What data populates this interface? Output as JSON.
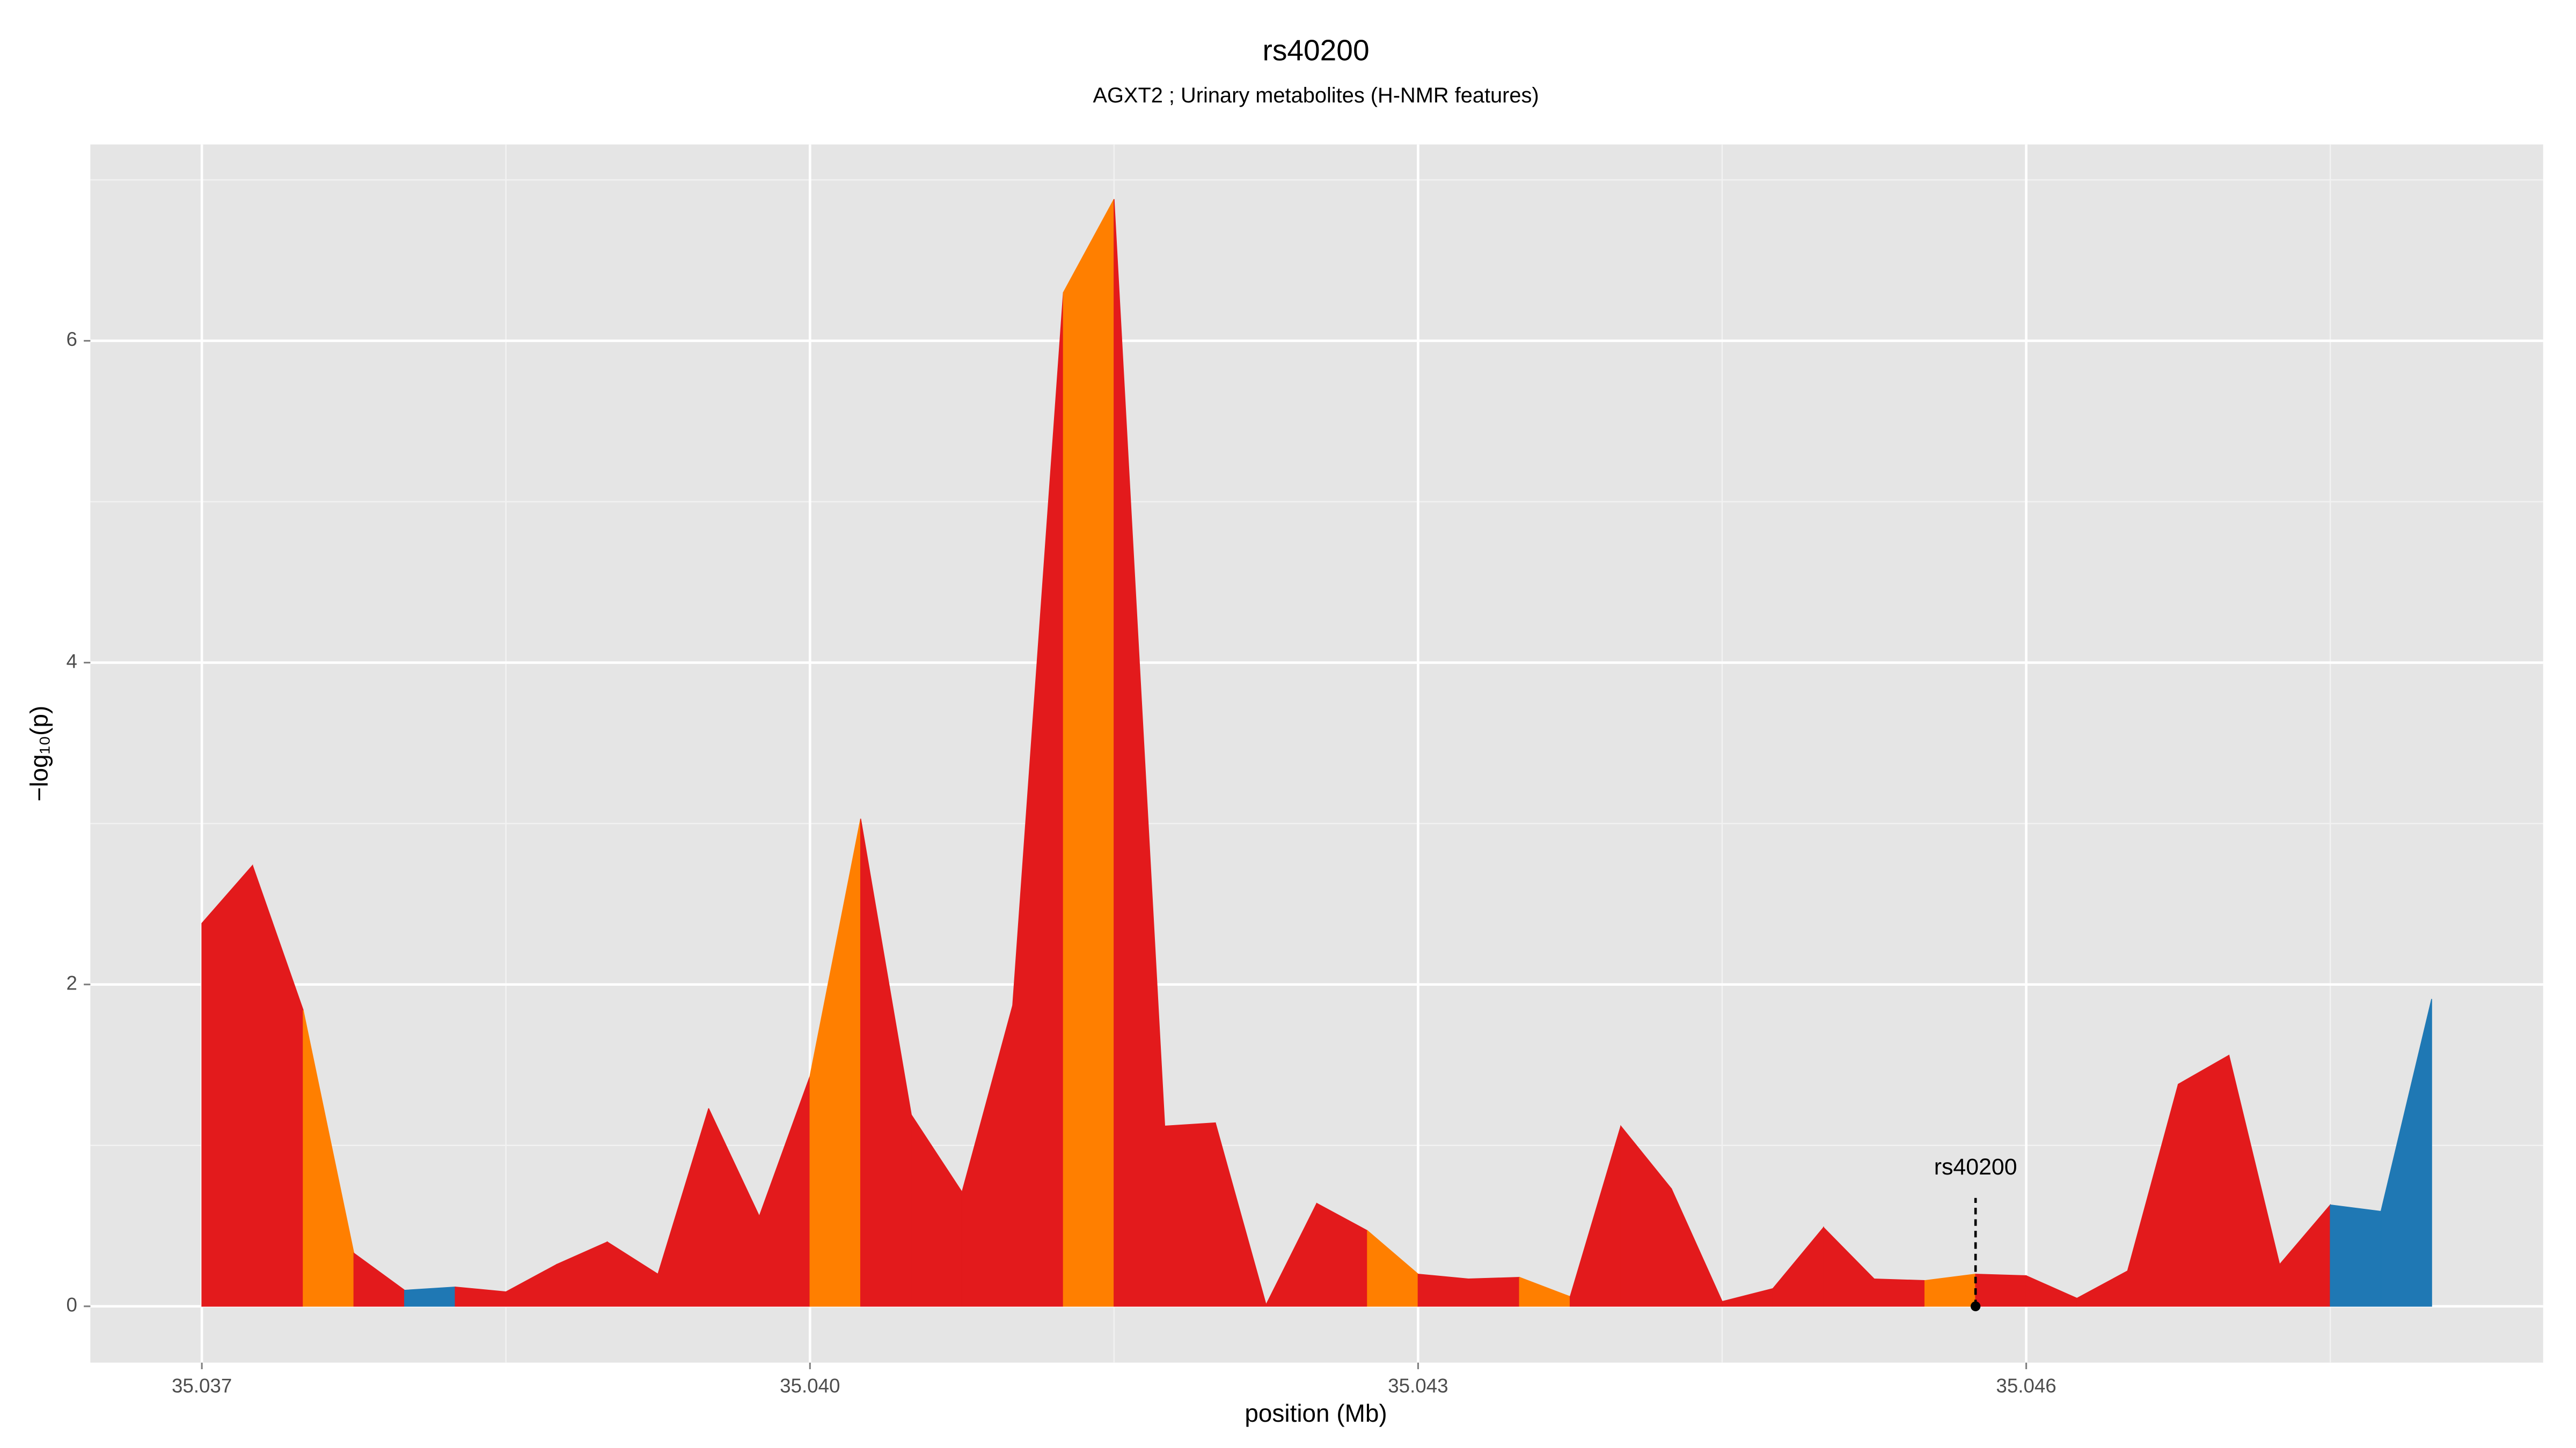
{
  "chart_data": {
    "type": "area",
    "title": "rs40200",
    "subtitle": "AGXT2 ; Urinary metabolites (H-NMR features)",
    "xlabel": "position (Mb)",
    "ylabel": "−log₁₀(p)",
    "x": [
      35.037,
      35.03725,
      35.0375,
      35.03775,
      35.038,
      35.03825,
      35.0385,
      35.03875,
      35.039,
      35.03925,
      35.0395,
      35.03975,
      35.04,
      35.04025,
      35.0405,
      35.04075,
      35.041,
      35.04125,
      35.0415,
      35.04175,
      35.042,
      35.04225,
      35.0425,
      35.04275,
      35.043,
      35.04325,
      35.0435,
      35.04375,
      35.044,
      35.04425,
      35.0445,
      35.04475,
      35.045,
      35.04525,
      35.0455,
      35.04575,
      35.046,
      35.04625,
      35.0465,
      35.04675,
      35.047,
      35.04725,
      35.0475,
      35.04775,
      35.048
    ],
    "values": [
      2.38,
      2.74,
      1.84,
      0.33,
      0.1,
      0.12,
      0.09,
      0.26,
      0.4,
      0.2,
      1.23,
      0.56,
      1.43,
      3.03,
      1.19,
      0.71,
      1.87,
      6.3,
      6.88,
      1.12,
      1.14,
      0.01,
      0.64,
      0.47,
      0.2,
      0.17,
      0.18,
      0.06,
      1.12,
      0.73,
      0.03,
      0.11,
      0.49,
      0.17,
      0.16,
      0.2,
      0.19,
      0.05,
      0.22,
      1.38,
      1.56,
      0.26,
      0.63,
      0.59,
      1.91
    ],
    "segment_colors": [
      "#e31a1c",
      "#e31a1c",
      "#ff7f00",
      "#e31a1c",
      "#1f78b4",
      "#e31a1c",
      "#e31a1c",
      "#e31a1c",
      "#e31a1c",
      "#e31a1c",
      "#e31a1c",
      "#e31a1c",
      "#ff7f00",
      "#e31a1c",
      "#e31a1c",
      "#e31a1c",
      "#e31a1c",
      "#ff7f00",
      "#e31a1c",
      "#e31a1c",
      "#e31a1c",
      "#e31a1c",
      "#e31a1c",
      "#ff7f00",
      "#e31a1c",
      "#e31a1c",
      "#ff7f00",
      "#e31a1c",
      "#e31a1c",
      "#e31a1c",
      "#e31a1c",
      "#e31a1c",
      "#e31a1c",
      "#e31a1c",
      "#ff7f00",
      "#e31a1c",
      "#e31a1c",
      "#e31a1c",
      "#e31a1c",
      "#e31a1c",
      "#e31a1c",
      "#e31a1c",
      "#1f78b4",
      "#1f78b4"
    ],
    "annotation": {
      "text": "rs40200",
      "x": 35.04575,
      "y": 0
    },
    "xlim": [
      35.03645,
      35.04855
    ],
    "ylim": [
      -0.35,
      7.22
    ],
    "xticks": [
      35.037,
      {
        "value": 35.04,
        "label": "35.040"
      },
      35.043,
      35.046
    ],
    "xminor": [
      35.0385,
      35.0415,
      35.0445,
      35.0475
    ],
    "yticks": [
      0,
      2,
      4,
      6
    ],
    "yminor": [
      1,
      3,
      5,
      7
    ],
    "grid": true
  }
}
